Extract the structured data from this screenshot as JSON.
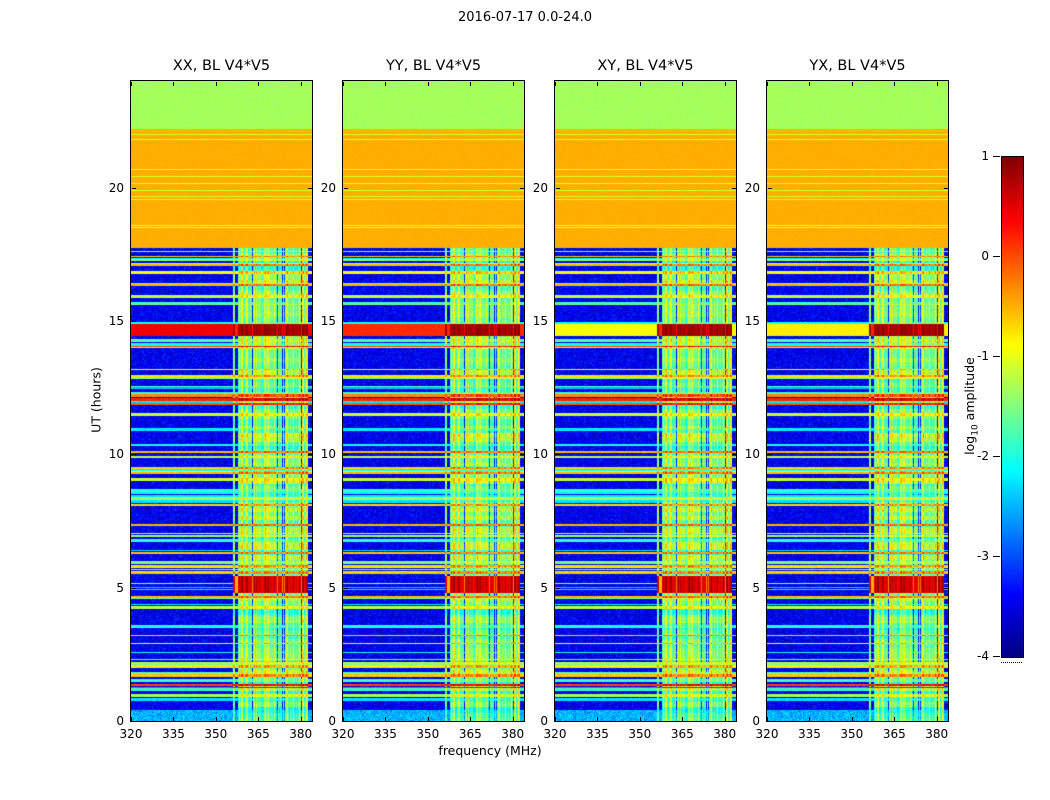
{
  "figure": {
    "title": "2016-07-17 0.0-24.0",
    "xlabel": "frequency (MHz)",
    "ylabel": "UT (hours)"
  },
  "panels": [
    {
      "title": "XX, BL V4*V5"
    },
    {
      "title": "YY, BL V4*V5"
    },
    {
      "title": "XY, BL V4*V5"
    },
    {
      "title": "YX, BL V4*V5"
    }
  ],
  "axes": {
    "x_ticks": [
      320,
      335,
      350,
      365,
      380
    ],
    "y_ticks": [
      0,
      5,
      10,
      15,
      20
    ]
  },
  "colorbar": {
    "label": {
      "prefix": "log",
      "sub": "10",
      "suffix": " amplitude"
    },
    "ticks": [
      1,
      0,
      -1,
      -2,
      -3,
      -4
    ]
  },
  "chart_data": {
    "type": "heatmap",
    "title": "2016-07-17 0.0-24.0",
    "xlabel": "frequency (MHz)",
    "ylabel": "UT (hours)",
    "value_label": "log10 amplitude",
    "colormap": "jet",
    "value_range": [
      -4,
      1
    ],
    "x_range_mhz": [
      320,
      384
    ],
    "y_range_hours": [
      0,
      24
    ],
    "x_ticks": [
      320,
      335,
      350,
      365,
      380
    ],
    "y_ticks": [
      0,
      5,
      10,
      15,
      20
    ],
    "colorbar_ticks": [
      1,
      0,
      -1,
      -2,
      -3,
      -4
    ],
    "panels": [
      "XX, BL V4*V5",
      "YY, BL V4*V5",
      "XY, BL V4*V5",
      "YX, BL V4*V5"
    ],
    "features": {
      "seed": 20160717,
      "background_noise": {
        "hours": [
          0.4,
          17.75
        ],
        "level": -3.45,
        "spread": 0.95
      },
      "bottom_cyan_band": {
        "hours": [
          0,
          0.4
        ],
        "level": -2.5
      },
      "solid_orange_band": {
        "hours": [
          17.75,
          22.1
        ],
        "level": -0.48,
        "thin_line_level": -1.05,
        "thin_line_fraction": 0.1
      },
      "solid_green_band": {
        "hours": [
          22.1,
          24
        ],
        "level": -1.32,
        "boundary_line_level": -0.52
      },
      "rfi_band_mhz": [
        356,
        382.5
      ],
      "rfi_band_level": -1.65,
      "horizontal_stripe_fraction": 0.085,
      "dense_stripe_zones": [
        [
          0.4,
          2.2
        ],
        [
          5.5,
          7.2
        ],
        [
          7.9,
          9.6
        ],
        [
          11.6,
          13.1
        ],
        [
          15.6,
          17.7
        ]
      ],
      "notable_stripes": [
        {
          "t": 1.35,
          "level": 0.05
        },
        {
          "t": 1.7,
          "level": -0.6
        },
        {
          "t": 4.65,
          "level": -0.55
        },
        {
          "t": 5.55,
          "level": -0.6
        },
        {
          "t": 7.35,
          "level": -0.5
        },
        {
          "t": 9.3,
          "level": -0.55
        },
        {
          "t": 12.2,
          "level": -0.3
        },
        {
          "t": 16.35,
          "level": -0.5
        },
        {
          "t": 17.1,
          "level": -0.55
        }
      ],
      "bright_transit_event": {
        "hours": [
          14.45,
          14.88
        ],
        "row_level_by_panel": [
          0.45,
          0.18,
          -0.9,
          -0.8
        ],
        "rfi_band_level": 0.78
      },
      "strong_rfi_event": {
        "hours": [
          4.8,
          5.45
        ],
        "rfi_band_level": 0.52
      }
    }
  }
}
